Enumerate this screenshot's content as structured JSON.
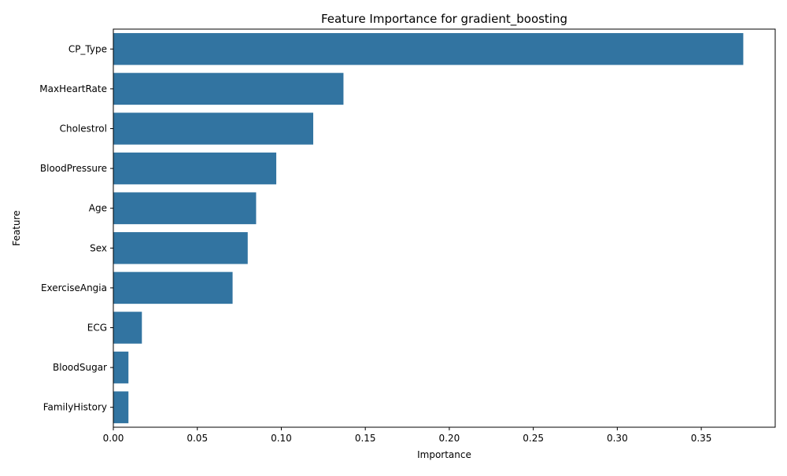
{
  "chart_data": {
    "type": "bar",
    "orientation": "horizontal",
    "title": "Feature Importance for gradient_boosting",
    "xlabel": "Importance",
    "ylabel": "Feature",
    "categories": [
      "CP_Type",
      "MaxHeartRate",
      "Cholestrol",
      "BloodPressure",
      "Age",
      "Sex",
      "ExerciseAngia",
      "ECG",
      "BloodSugar",
      "FamilyHistory"
    ],
    "values": [
      0.375,
      0.137,
      0.119,
      0.097,
      0.085,
      0.08,
      0.071,
      0.017,
      0.009,
      0.009
    ],
    "xlim": [
      0,
      0.394
    ],
    "xticks": [
      0.0,
      0.05,
      0.1,
      0.15,
      0.2,
      0.25,
      0.3,
      0.35
    ],
    "xtick_labels": [
      "0.00",
      "0.05",
      "0.10",
      "0.15",
      "0.20",
      "0.25",
      "0.30",
      "0.35"
    ],
    "bar_color": "#3274a1",
    "grid": false,
    "legend": "none"
  }
}
